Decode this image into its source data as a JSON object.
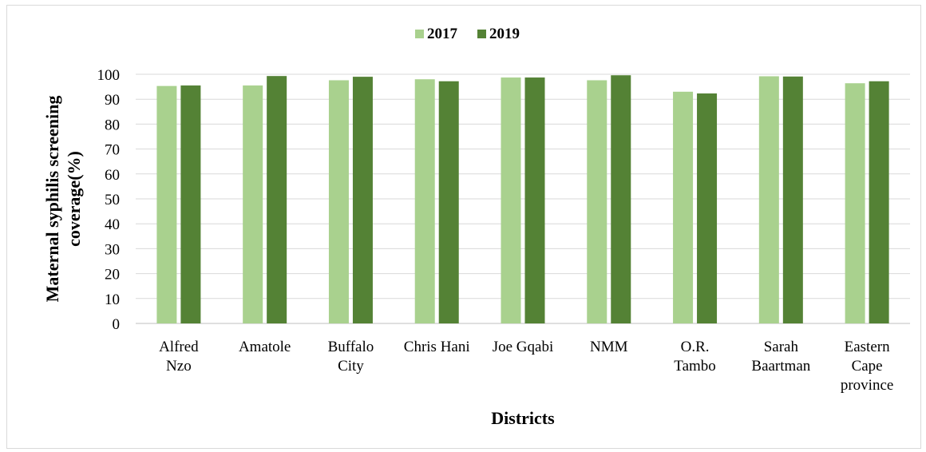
{
  "chart_data": {
    "type": "bar",
    "categories": [
      [
        "Alfred",
        "Nzo"
      ],
      [
        "Amatole"
      ],
      [
        "Buffalo",
        "City"
      ],
      [
        "Chris Hani"
      ],
      [
        "Joe Gqabi"
      ],
      [
        "NMM"
      ],
      [
        "O.R.",
        "Tambo"
      ],
      [
        "Sarah",
        "Baartman"
      ],
      [
        "Eastern",
        "Cape",
        "province"
      ]
    ],
    "series": [
      {
        "name": "2017",
        "color": "#a9d18e",
        "values": [
          95.3,
          95.5,
          97.6,
          98.0,
          98.7,
          97.6,
          93.0,
          99.2,
          96.4
        ]
      },
      {
        "name": "2019",
        "color": "#548235",
        "values": [
          95.5,
          99.3,
          99.0,
          97.2,
          98.7,
          99.6,
          92.3,
          99.1,
          97.2
        ]
      }
    ],
    "xlabel": "Districts",
    "ylabel": [
      "Maternal syphilis screening",
      "coverage(%)"
    ],
    "ylim": [
      0,
      100
    ],
    "yticks": [
      0,
      10,
      20,
      30,
      40,
      50,
      60,
      70,
      80,
      90,
      100
    ],
    "grid": true,
    "legend": "top-center"
  }
}
